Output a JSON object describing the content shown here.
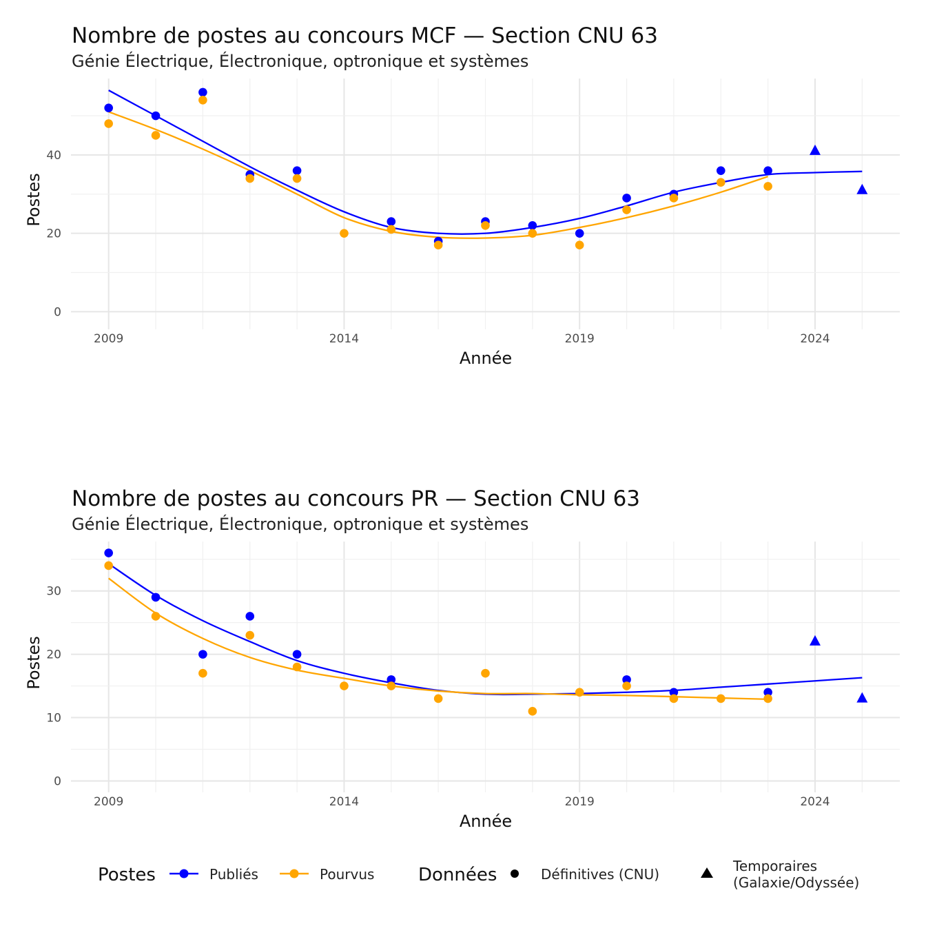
{
  "chart_data": [
    {
      "type": "scatter",
      "title": "Nombre de postes au concours MCF —  Section CNU 63",
      "subtitle": "Génie Électrique, Électronique, optronique et systèmes",
      "xlabel": "Année",
      "ylabel": "Postes",
      "xlim": [
        2008.2,
        2025.8
      ],
      "ylim": [
        -4.5,
        59.5
      ],
      "xticks": [
        2009,
        2014,
        2019,
        2024
      ],
      "yticks": [
        0,
        20,
        40
      ],
      "series": [
        {
          "name": "Publiés",
          "color": "#0000ff",
          "shape": "circle",
          "x": [
            2009,
            2010,
            2011,
            2012,
            2013,
            2015,
            2016,
            2017,
            2018,
            2019,
            2020,
            2021,
            2022,
            2023
          ],
          "values": [
            52,
            50,
            56,
            35,
            36,
            23,
            18,
            23,
            22,
            20,
            29,
            30,
            36,
            36
          ]
        },
        {
          "name": "Pourvus",
          "color": "#ffa500",
          "shape": "circle",
          "x": [
            2009,
            2010,
            2011,
            2012,
            2013,
            2014,
            2015,
            2016,
            2017,
            2018,
            2019,
            2020,
            2021,
            2022,
            2023
          ],
          "values": [
            48,
            45,
            54,
            34,
            34,
            20,
            21,
            17,
            22,
            20,
            17,
            26,
            29,
            33,
            32
          ]
        },
        {
          "name": "Publiés (temporaires)",
          "color": "#0000ff",
          "shape": "triangle",
          "x": [
            2024,
            2025
          ],
          "values": [
            41,
            31
          ]
        },
        {
          "name": "Tendance Publiés",
          "color": "#0000ff",
          "shape": "line",
          "x": [
            2009,
            2010,
            2011,
            2012,
            2013,
            2014,
            2015,
            2016,
            2017,
            2018,
            2019,
            2020,
            2021,
            2022,
            2023,
            2024,
            2025
          ],
          "values": [
            56.5,
            50,
            43.5,
            37,
            31,
            25.5,
            21.5,
            20,
            20,
            21.5,
            23.8,
            27,
            30.5,
            33,
            35,
            35.5,
            35.8
          ]
        },
        {
          "name": "Tendance Pourvus",
          "color": "#ffa500",
          "shape": "line",
          "x": [
            2009,
            2010,
            2011,
            2012,
            2013,
            2014,
            2015,
            2016,
            2017,
            2018,
            2019,
            2020,
            2021,
            2022,
            2023
          ],
          "values": [
            51,
            46.5,
            41.5,
            36,
            30,
            24,
            20.5,
            19,
            18.8,
            19.5,
            21.5,
            24,
            27,
            30.5,
            34.5
          ]
        }
      ]
    },
    {
      "type": "scatter",
      "title": "Nombre de postes au concours PR —  Section CNU 63",
      "subtitle": "Génie Électrique, Électronique, optronique et systèmes",
      "xlabel": "Année",
      "ylabel": "Postes",
      "xlim": [
        2008.2,
        2025.8
      ],
      "ylim": [
        -1.8,
        37.8
      ],
      "xticks": [
        2009,
        2014,
        2019,
        2024
      ],
      "yticks": [
        0,
        10,
        20,
        30
      ],
      "series": [
        {
          "name": "Publiés",
          "color": "#0000ff",
          "shape": "circle",
          "x": [
            2009,
            2010,
            2011,
            2012,
            2013,
            2015,
            2020,
            2021,
            2023
          ],
          "values": [
            36,
            29,
            20,
            26,
            20,
            16,
            16,
            14,
            14
          ]
        },
        {
          "name": "Pourvus",
          "color": "#ffa500",
          "shape": "circle",
          "x": [
            2009,
            2010,
            2011,
            2012,
            2013,
            2014,
            2015,
            2016,
            2017,
            2018,
            2019,
            2020,
            2021,
            2022,
            2023
          ],
          "values": [
            34,
            26,
            17,
            23,
            18,
            15,
            15,
            13,
            17,
            11,
            14,
            15,
            13,
            13,
            13
          ]
        },
        {
          "name": "Publiés (temporaires)",
          "color": "#0000ff",
          "shape": "triangle",
          "x": [
            2024,
            2025
          ],
          "values": [
            22,
            13
          ]
        },
        {
          "name": "Tendance Publiés",
          "color": "#0000ff",
          "shape": "line",
          "x": [
            2009,
            2010,
            2011,
            2012,
            2013,
            2014,
            2015,
            2016,
            2017,
            2018,
            2019,
            2020,
            2021,
            2022,
            2023,
            2024,
            2025
          ],
          "values": [
            34.3,
            29.3,
            25.3,
            22,
            19,
            17,
            15.5,
            14.3,
            13.7,
            13.7,
            13.8,
            14,
            14.3,
            14.8,
            15.3,
            15.8,
            16.3
          ]
        },
        {
          "name": "Tendance Pourvus",
          "color": "#ffa500",
          "shape": "line",
          "x": [
            2009,
            2010,
            2011,
            2012,
            2013,
            2014,
            2015,
            2016,
            2017,
            2018,
            2019,
            2020,
            2021,
            2022,
            2023
          ],
          "values": [
            32,
            26.5,
            22.5,
            19.5,
            17.5,
            16.2,
            15,
            14.2,
            13.8,
            13.8,
            13.6,
            13.5,
            13.3,
            13.1,
            12.9
          ]
        }
      ]
    }
  ],
  "legend": {
    "postes_title": "Postes",
    "publies_label": "Publiés",
    "pourvus_label": "Pourvus",
    "donnees_title": "Données",
    "definitives_label": "Définitives (CNU)",
    "temporaires_line1": "Temporaires",
    "temporaires_line2": "(Galaxie/Odyssée)",
    "colors": {
      "publies": "#0000ff",
      "pourvus": "#ffa500"
    }
  }
}
